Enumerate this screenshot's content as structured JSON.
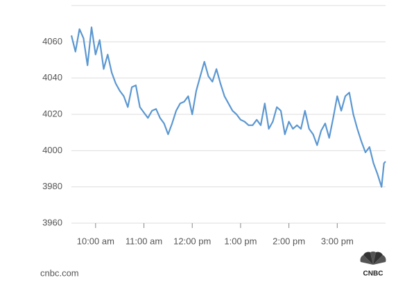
{
  "chart_data": {
    "type": "line",
    "x": [
      570,
      575,
      580,
      585,
      590,
      595,
      600,
      605,
      610,
      615,
      620,
      625,
      630,
      635,
      640,
      645,
      650,
      655,
      660,
      665,
      670,
      675,
      680,
      685,
      690,
      695,
      700,
      705,
      710,
      715,
      720,
      725,
      730,
      735,
      740,
      745,
      750,
      755,
      760,
      765,
      770,
      775,
      780,
      785,
      790,
      795,
      800,
      805,
      810,
      815,
      820,
      825,
      830,
      835,
      840,
      845,
      850,
      855,
      860,
      865,
      870,
      875,
      880,
      885,
      890,
      895,
      900,
      905,
      910,
      915,
      920,
      925,
      930,
      935,
      940,
      945,
      950,
      955,
      958,
      960
    ],
    "values": [
      4063.5,
      4054.6,
      4067,
      4062,
      4047,
      4068,
      4053,
      4061,
      4045,
      4053,
      4043,
      4037,
      4033,
      4030,
      4024,
      4035,
      4036,
      4024,
      4021,
      4018,
      4022,
      4023,
      4018,
      4015,
      4009,
      4015,
      4022,
      4026,
      4027,
      4030,
      4020,
      4033,
      4041,
      4049,
      4041,
      4038,
      4045,
      4037,
      4030,
      4026,
      4022,
      4020,
      4017,
      4016,
      4014,
      4014,
      4017,
      4014,
      4026,
      4012,
      4016,
      4024,
      4022,
      4009,
      4016,
      4012,
      4014,
      4012,
      4022,
      4012,
      4009,
      4003,
      4011,
      4015,
      4007,
      4018,
      4030,
      4022,
      4030,
      4032,
      4020,
      4012,
      4005,
      3999,
      4002,
      3993,
      3987,
      3980,
      3993,
      3994
    ],
    "color": "#5b97d1",
    "xlim": [
      570,
      960
    ],
    "xticks": [
      {
        "value": 600,
        "label": "10:00 am"
      },
      {
        "value": 660,
        "label": "11:00 am"
      },
      {
        "value": 720,
        "label": "12:00 pm"
      },
      {
        "value": 780,
        "label": "1:00 pm"
      },
      {
        "value": 840,
        "label": "2:00 pm"
      },
      {
        "value": 900,
        "label": "3:00 pm"
      }
    ],
    "ylim": [
      3960,
      4080
    ],
    "yticks": [
      3960,
      3980,
      4000,
      4020,
      4040,
      4060
    ],
    "grid": true,
    "source": "cnbc.com",
    "logo": "CNBC"
  }
}
